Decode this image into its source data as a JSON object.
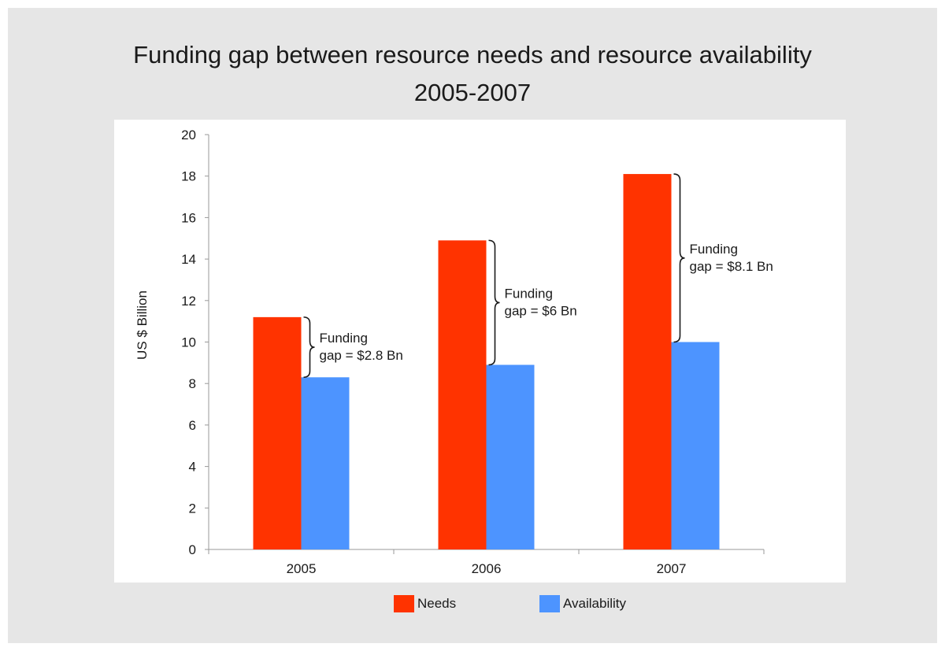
{
  "colors": {
    "needs": "#ff3300",
    "availability": "#4d94ff"
  },
  "chart_data": {
    "type": "bar",
    "title": [
      "Funding gap between resource needs and resource availability",
      "2005-2007"
    ],
    "ylabel": "US $ Billion",
    "xlabel": "",
    "ylim": [
      0,
      20
    ],
    "yticks": [
      0,
      2,
      4,
      6,
      8,
      10,
      12,
      14,
      16,
      18,
      20
    ],
    "categories": [
      "2005",
      "2006",
      "2007"
    ],
    "series": [
      {
        "name": "Needs",
        "values": [
          11.2,
          14.9,
          18.1
        ]
      },
      {
        "name": "Availability",
        "values": [
          8.3,
          8.9,
          10.0
        ]
      }
    ],
    "annotations": [
      {
        "category": "2005",
        "lines": [
          "Funding",
          "gap = $2.8 Bn"
        ]
      },
      {
        "category": "2006",
        "lines": [
          "Funding",
          "gap = $6 Bn"
        ]
      },
      {
        "category": "2007",
        "lines": [
          "Funding",
          "gap = $8.1 Bn"
        ]
      }
    ],
    "legend_position": "bottom",
    "grid": false
  }
}
